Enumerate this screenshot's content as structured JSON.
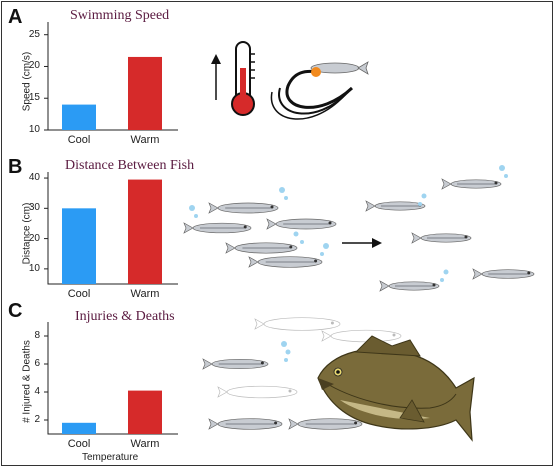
{
  "colors": {
    "cool": "#2b9bf4",
    "warm": "#d62a2a",
    "title": "#5a1a40",
    "fish_body": "#c8ccd2",
    "fish_stripe": "#8a8f97",
    "bubble": "#9fd4f0"
  },
  "panels": [
    {
      "letter": "A",
      "title": "Swimming Speed"
    },
    {
      "letter": "B",
      "title": "Distance Between Fish"
    },
    {
      "letter": "C",
      "title": "Injuries & Deaths"
    }
  ],
  "xlabel_bottom": "Temperature",
  "icons": [
    "up-arrow-icon",
    "thermometer-icon",
    "fish-burst-icon",
    "fish-school-icon",
    "right-arrow-icon",
    "bass-predator-icon"
  ],
  "chart_data": [
    {
      "type": "bar",
      "title": "Swimming Speed",
      "categories": [
        "Cool",
        "Warm"
      ],
      "values": [
        14,
        21.5
      ],
      "ylabel": "Speed (cm/s)",
      "ylim": [
        10,
        27
      ],
      "yticks": [
        10,
        15,
        20,
        25
      ]
    },
    {
      "type": "bar",
      "title": "Distance Between Fish",
      "categories": [
        "Cool",
        "Warm"
      ],
      "values": [
        30,
        39.5
      ],
      "ylabel": "Distance (cm)",
      "ylim": [
        5,
        42
      ],
      "yticks": [
        10,
        20,
        30,
        40
      ]
    },
    {
      "type": "bar",
      "title": "Injuries & Deaths",
      "categories": [
        "Cool",
        "Warm"
      ],
      "values": [
        1.8,
        4.1
      ],
      "ylabel": "# Injured & Deaths",
      "xlabel": "Temperature",
      "ylim": [
        1,
        9
      ],
      "yticks": [
        2,
        4,
        6,
        8
      ]
    }
  ]
}
